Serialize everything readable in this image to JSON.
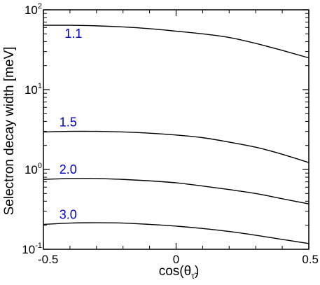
{
  "chart_data": {
    "type": "line",
    "title": "",
    "xlabel": "cos(θ",
    "xlabel_sub": "τ̃",
    "xlabel_close": ")",
    "ylabel": "Selectron decay width  [meV]",
    "x_scale": "linear",
    "y_scale": "log",
    "xlim": [
      -0.5,
      0.5
    ],
    "ylim": [
      0.1,
      100
    ],
    "grid": false,
    "x_ticks": [
      {
        "value": -0.5,
        "label": "-0.5"
      },
      {
        "value": 0,
        "label": "0"
      },
      {
        "value": 0.5,
        "label": "0.5"
      }
    ],
    "y_ticks": [
      {
        "value": 0.1,
        "base": "10",
        "exp": "-1"
      },
      {
        "value": 1,
        "base": "10",
        "exp": "0"
      },
      {
        "value": 10,
        "base": "10",
        "exp": "1"
      },
      {
        "value": 100,
        "base": "10",
        "exp": "2"
      }
    ],
    "series": [
      {
        "label": "1.1",
        "color": "#0000cc",
        "x": [
          -0.5,
          -0.4,
          -0.3,
          -0.2,
          -0.1,
          0,
          0.1,
          0.2,
          0.3,
          0.4,
          0.5
        ],
        "y": [
          64,
          64,
          63,
          61,
          58,
          54,
          50,
          45,
          38,
          31,
          25
        ]
      },
      {
        "label": "1.5",
        "color": "#0000cc",
        "x": [
          -0.5,
          -0.4,
          -0.3,
          -0.2,
          -0.1,
          0,
          0.1,
          0.2,
          0.3,
          0.4,
          0.5
        ],
        "y": [
          2.95,
          3.0,
          3.0,
          2.95,
          2.85,
          2.7,
          2.5,
          2.2,
          1.9,
          1.55,
          1.22
        ]
      },
      {
        "label": "2.0",
        "color": "#0000cc",
        "x": [
          -0.5,
          -0.4,
          -0.3,
          -0.2,
          -0.1,
          0,
          0.1,
          0.2,
          0.3,
          0.4,
          0.5
        ],
        "y": [
          0.75,
          0.77,
          0.77,
          0.75,
          0.72,
          0.68,
          0.62,
          0.56,
          0.5,
          0.43,
          0.37
        ]
      },
      {
        "label": "3.0",
        "color": "#0000cc",
        "x": [
          -0.5,
          -0.4,
          -0.3,
          -0.2,
          -0.1,
          0,
          0.1,
          0.2,
          0.3,
          0.4,
          0.5
        ],
        "y": [
          0.205,
          0.213,
          0.215,
          0.213,
          0.205,
          0.195,
          0.182,
          0.167,
          0.15,
          0.133,
          0.118
        ]
      }
    ]
  }
}
